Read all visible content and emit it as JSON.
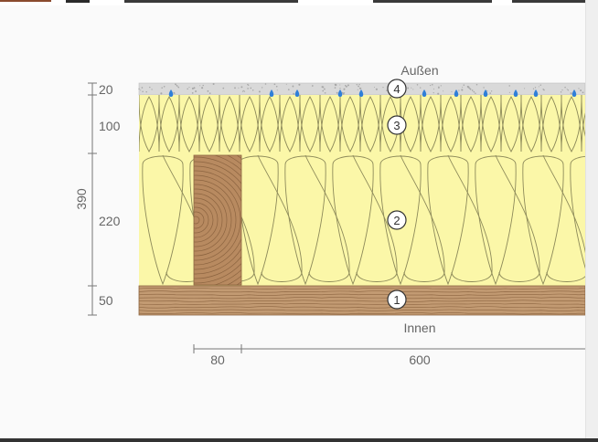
{
  "diagram": {
    "labels": {
      "outside": "Außen",
      "inside": "Innen"
    },
    "vertical_dimensions": {
      "total": "390",
      "layers": [
        "20",
        "100",
        "220",
        "50"
      ]
    },
    "horizontal_dimensions": [
      "80",
      "600"
    ],
    "layer_markers": [
      "4",
      "3",
      "2",
      "1"
    ],
    "layers": [
      {
        "marker": "4",
        "material": "plaster-render",
        "thickness": "20",
        "color": "#d9d9d9"
      },
      {
        "marker": "3",
        "material": "insulation",
        "thickness": "100",
        "color": "#fbf7a8"
      },
      {
        "marker": "2",
        "material": "insulation",
        "thickness": "220",
        "color": "#fbf7a8"
      },
      {
        "marker": "1",
        "material": "wood-board",
        "thickness": "50",
        "color": "#c29a72"
      }
    ],
    "stud_color": "#b88a60",
    "water_drop_color": "#2f7fd8"
  }
}
